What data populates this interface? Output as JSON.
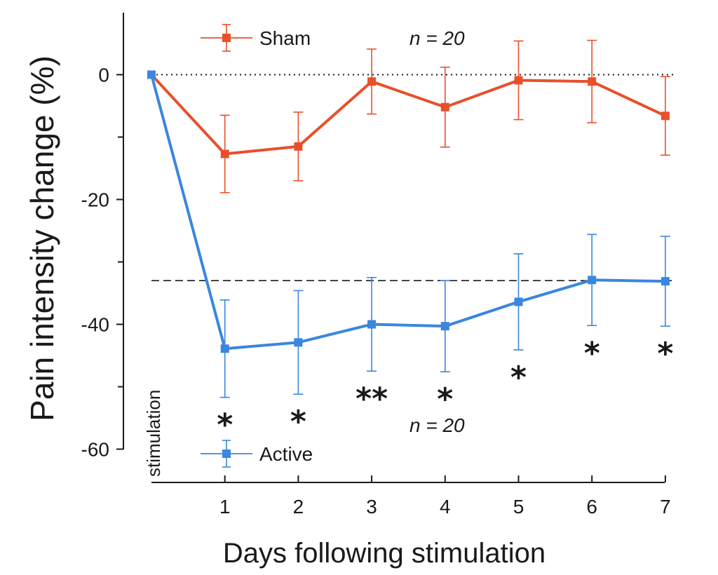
{
  "chart_data": {
    "type": "line",
    "xlabel": "Days following stimulation",
    "ylabel": "Pain intensity change (%)",
    "x_start_label": "stimulation",
    "xlim": [
      0,
      7
    ],
    "ylim": [
      -65,
      10
    ],
    "x_ticks": [
      1,
      2,
      3,
      4,
      5,
      6,
      7
    ],
    "x_tick_labels": [
      "1",
      "2",
      "3",
      "4",
      "5",
      "6",
      "7"
    ],
    "y_ticks": [
      0,
      -20,
      -40,
      -60
    ],
    "y_tick_labels": [
      "0",
      "-20",
      "-40",
      "-60"
    ],
    "y_minor_ticks": [
      -10,
      -30,
      -50
    ],
    "reference_lines": [
      {
        "y": 0,
        "style": "dotted"
      },
      {
        "y": -33,
        "style": "dashed"
      }
    ],
    "series": [
      {
        "name": "Sham",
        "color": "#e8502a",
        "x": [
          0,
          1,
          2,
          3,
          4,
          5,
          6,
          7
        ],
        "y": [
          0,
          -12.7,
          -11.5,
          -1.1,
          -5.2,
          -0.9,
          -1.1,
          -6.6
        ],
        "error": [
          null,
          6.2,
          5.5,
          5.2,
          6.4,
          6.3,
          6.6,
          6.3
        ]
      },
      {
        "name": "Active",
        "color": "#3a86e0",
        "x": [
          0,
          1,
          2,
          3,
          4,
          5,
          6,
          7
        ],
        "y": [
          0,
          -43.9,
          -42.9,
          -40.0,
          -40.3,
          -36.4,
          -32.9,
          -33.1
        ],
        "error": [
          null,
          7.8,
          8.3,
          7.5,
          7.3,
          7.7,
          7.3,
          7.2
        ]
      }
    ],
    "legend": [
      {
        "name": "Sham",
        "n_label": "n = 20",
        "placement": "top"
      },
      {
        "name": "Active",
        "n_label": "n = 20",
        "placement": "bottom"
      }
    ],
    "significance": [
      {
        "x": 1,
        "label": "*"
      },
      {
        "x": 2,
        "label": "*"
      },
      {
        "x": 3,
        "label": "**"
      },
      {
        "x": 4,
        "label": "*"
      },
      {
        "x": 5,
        "label": "*"
      },
      {
        "x": 6,
        "label": "*"
      },
      {
        "x": 7,
        "label": "*"
      }
    ]
  }
}
